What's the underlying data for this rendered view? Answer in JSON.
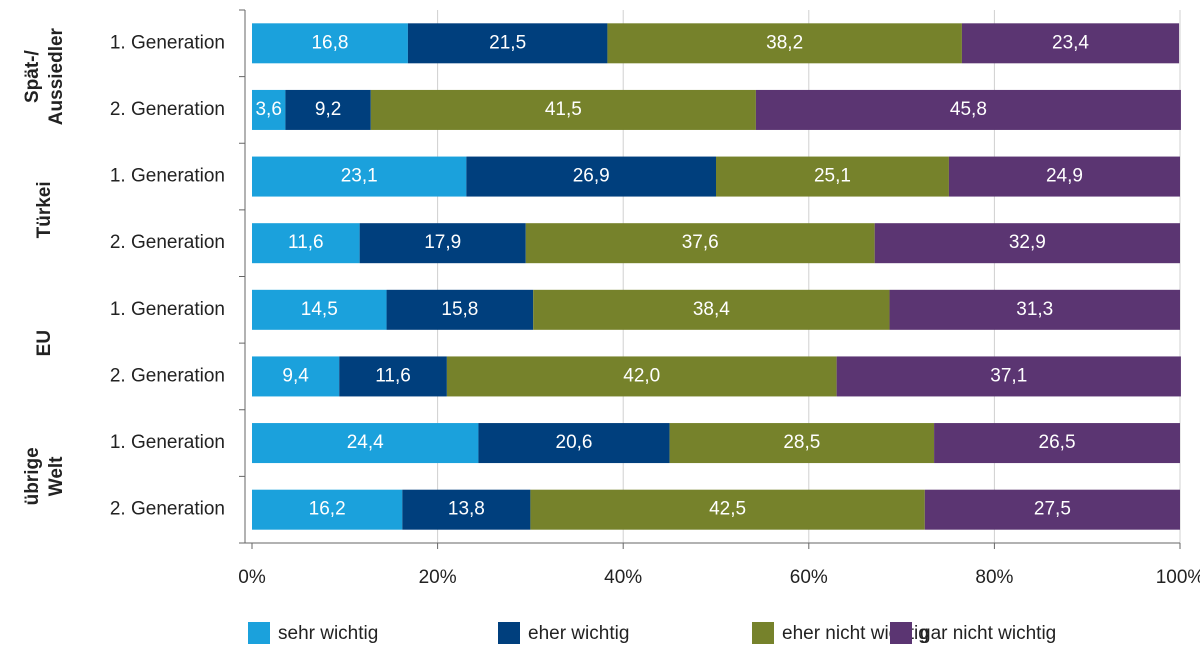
{
  "chart_data": {
    "type": "stacked-barh",
    "groups": [
      {
        "label_lines": [
          "Spät-/",
          "Aussiedler"
        ],
        "categories": [
          "1. Generation",
          "2. Generation"
        ]
      },
      {
        "label_lines": [
          "Türkei"
        ],
        "categories": [
          "1. Generation",
          "2. Generation"
        ]
      },
      {
        "label_lines": [
          "EU"
        ],
        "categories": [
          "1. Generation",
          "2. Generation"
        ]
      },
      {
        "label_lines": [
          "übrige",
          "Welt"
        ],
        "categories": [
          "1. Generation",
          "2. Generation"
        ]
      }
    ],
    "series": [
      {
        "name": "sehr wichtig",
        "color": "#1ba1dc",
        "values": [
          16.8,
          3.6,
          23.1,
          11.6,
          14.5,
          9.4,
          24.4,
          16.2
        ],
        "value_labels": [
          "16,8",
          "3,6",
          "23,1",
          "11,6",
          "14,5",
          "9,4",
          "24,4",
          "16,2"
        ]
      },
      {
        "name": "eher wichtig",
        "color": "#003f7d",
        "values": [
          21.5,
          9.2,
          26.9,
          17.9,
          15.8,
          11.6,
          20.6,
          13.8
        ],
        "value_labels": [
          "21,5",
          "9,2",
          "26,9",
          "17,9",
          "15,8",
          "11,6",
          "20,6",
          "13,8"
        ]
      },
      {
        "name": "eher nicht wichtig",
        "color": "#76822b",
        "values": [
          38.2,
          41.5,
          25.1,
          37.6,
          38.4,
          42.0,
          28.5,
          42.5
        ],
        "value_labels": [
          "38,2",
          "41,5",
          "25,1",
          "37,6",
          "38,4",
          "42,0",
          "28,5",
          "42,5"
        ]
      },
      {
        "name": "gar nicht wichtig",
        "color": "#5b3572",
        "values": [
          23.4,
          45.8,
          24.9,
          32.9,
          31.3,
          37.1,
          26.5,
          27.5
        ],
        "value_labels": [
          "23,4",
          "45,8",
          "24,9",
          "32,9",
          "31,3",
          "37,1",
          "26,5",
          "27,5"
        ]
      }
    ],
    "xlim": [
      0,
      100
    ],
    "xticks": [
      {
        "value": 0,
        "label": "0%"
      },
      {
        "value": 20,
        "label": "20%"
      },
      {
        "value": 40,
        "label": "40%"
      },
      {
        "value": 60,
        "label": "60%"
      },
      {
        "value": 80,
        "label": "80%"
      },
      {
        "value": 100,
        "label": "100%"
      }
    ],
    "grid": true,
    "legend": "bottom"
  }
}
